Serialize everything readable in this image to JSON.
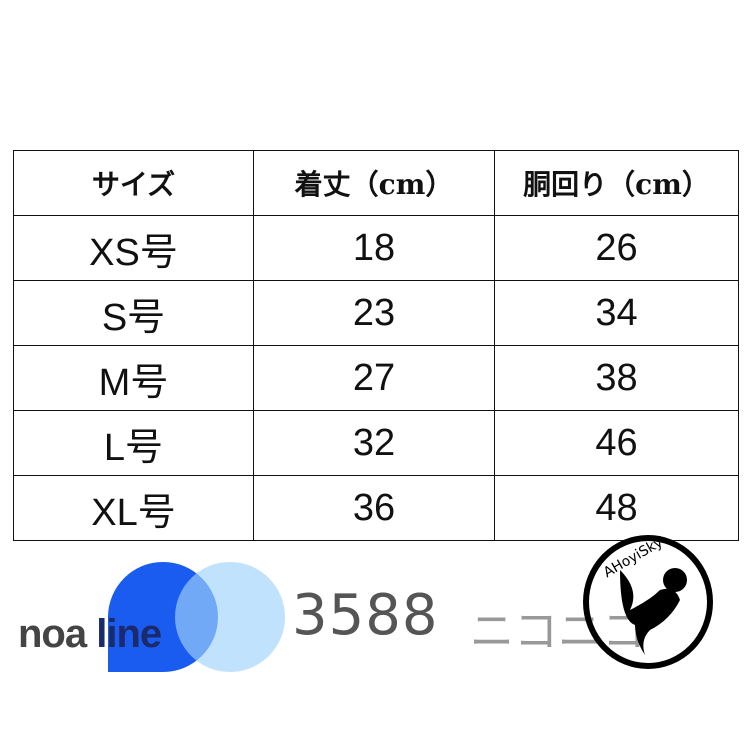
{
  "table": {
    "headers": [
      "サイズ",
      "着丈（cm）",
      "胴回り（cm）"
    ],
    "rows": [
      [
        "XS号",
        "18",
        "26"
      ],
      [
        "S号",
        "23",
        "34"
      ],
      [
        "M号",
        "27",
        "38"
      ],
      [
        "L号",
        "32",
        "46"
      ],
      [
        "XL号",
        "36",
        "48"
      ]
    ]
  },
  "watermarks": {
    "brand1_a": "noa ",
    "brand1_b": "line",
    "number": "3588",
    "kana": "ニコニコ",
    "circle_logo": "AHoyiSky"
  },
  "colors": {
    "logo_blue": "#1a5cf0",
    "logo_light_blue": "#a0d2fa"
  }
}
